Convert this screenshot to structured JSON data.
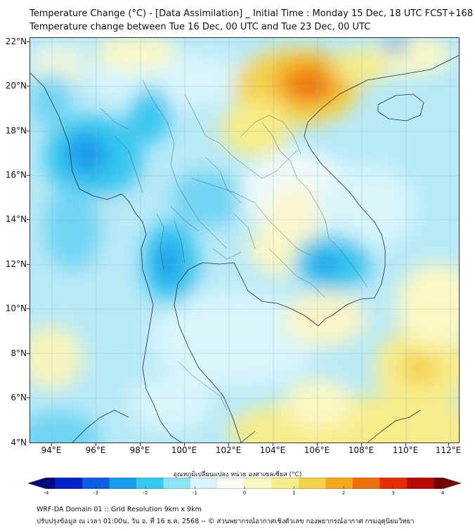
{
  "header": {
    "title_line1": "Temperature Change (°C) - [Data Assimilation] _ Initial Time : Monday 15 Dec, 18 UTC FCST+168",
    "title_line2": "Temperature change between Tue 16 Dec, 00 UTC and Tue 23 Dec, 00 UTC"
  },
  "map": {
    "lat_labels": [
      "22°N",
      "20°N",
      "18°N",
      "16°N",
      "14°N",
      "12°N",
      "10°N",
      "8°N",
      "6°N",
      "4°N"
    ],
    "lat_values": [
      22,
      20,
      18,
      16,
      14,
      12,
      10,
      8,
      6,
      4
    ],
    "lon_labels": [
      "94°E",
      "96°E",
      "98°E",
      "100°E",
      "102°E",
      "104°E",
      "106°E",
      "108°E",
      "110°E",
      "112°E"
    ],
    "lon_values": [
      94,
      96,
      98,
      100,
      102,
      104,
      106,
      108,
      110,
      112
    ],
    "extent": {
      "lon_min": 93,
      "lon_max": 112.5,
      "lat_min": 4,
      "lat_max": 22.2
    },
    "background_color": "#b8e9f7",
    "grid": true
  },
  "colorbar": {
    "title": "อุณหภูมิเปลี่ยนแปลง หน่วย องศาเซลเซียส (°C)",
    "tick_labels": [
      "-4",
      "-3",
      "-2",
      "-1",
      "0",
      "1",
      "2",
      "3",
      "4"
    ],
    "tick_values": [
      -4,
      -3,
      -2,
      -1,
      0,
      1,
      2,
      3,
      4
    ],
    "colors": [
      "#000a7a",
      "#0020c8",
      "#0b5ce0",
      "#1a9ae8",
      "#36c6f0",
      "#8ee3f7",
      "#d8f5fb",
      "#f9f9f2",
      "#fbf7c4",
      "#f7ec8a",
      "#f4d24c",
      "#f2a91c",
      "#ee6f0c",
      "#e52d08",
      "#b80a05",
      "#760000"
    ]
  },
  "footer": {
    "line1": "WRF-DA Domain 01 :: Grid Resolution 9km x 9km",
    "line2": "ปรับปรุงข้อมูล ณ เวลา 01:00น. วัน อ. ที่ 16 ธ.ค. 2568 -- © ส่วนพยากรณ์อากาศเชิงตัวเลข กองพยากรณ์อากาศ กรมอุตุนิยมวิทยา"
  }
}
